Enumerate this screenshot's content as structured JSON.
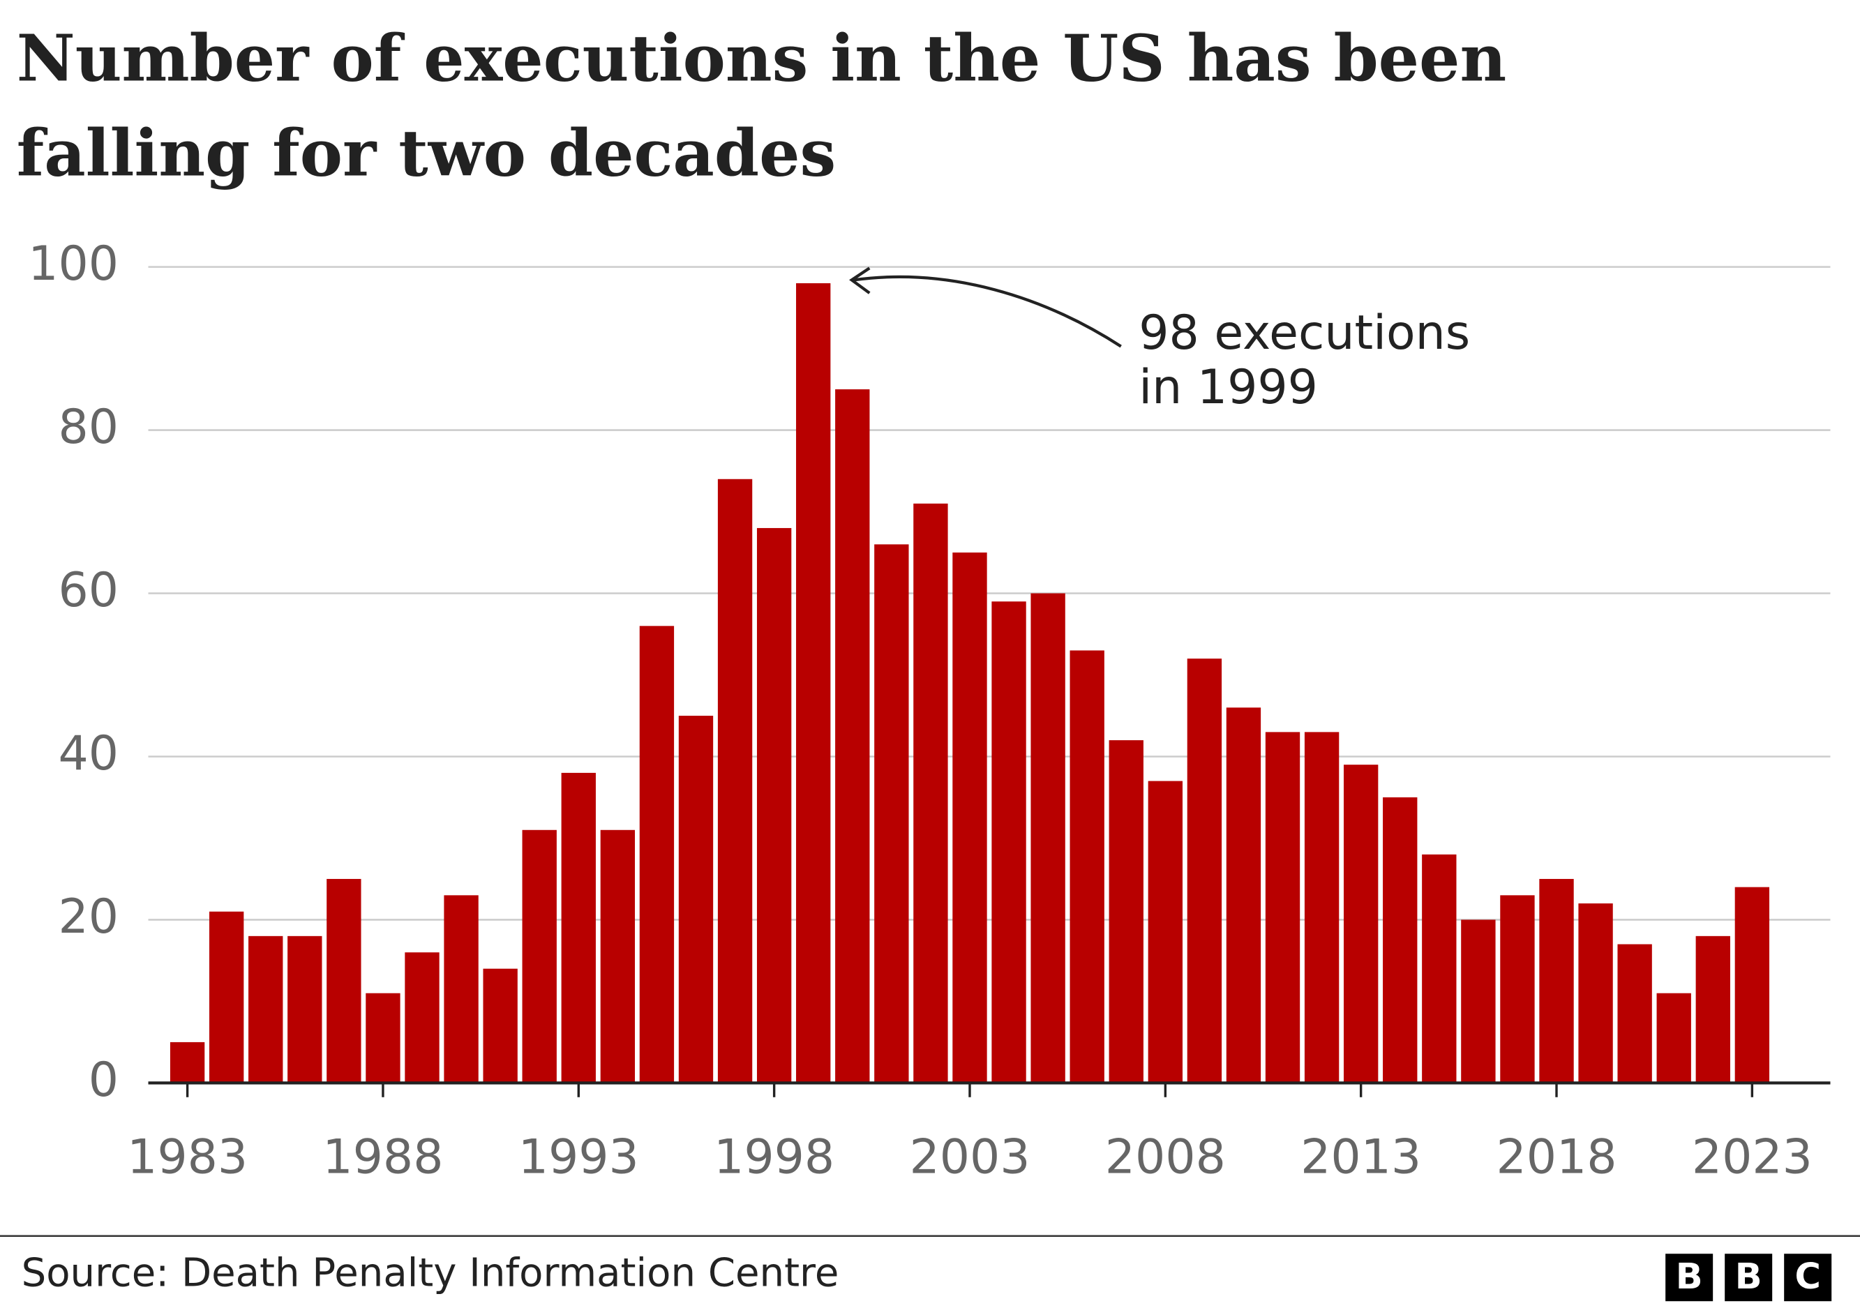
{
  "chart_data": {
    "type": "bar",
    "title": [
      "Number of executions in the US has been",
      "falling for two decades"
    ],
    "x": [
      1983,
      1984,
      1985,
      1986,
      1987,
      1988,
      1989,
      1990,
      1991,
      1992,
      1993,
      1994,
      1995,
      1996,
      1997,
      1998,
      1999,
      2000,
      2001,
      2002,
      2003,
      2004,
      2005,
      2006,
      2007,
      2008,
      2009,
      2010,
      2011,
      2012,
      2013,
      2014,
      2015,
      2016,
      2017,
      2018,
      2019,
      2020,
      2021,
      2022,
      2023
    ],
    "values": [
      5,
      21,
      18,
      18,
      25,
      11,
      16,
      23,
      14,
      31,
      38,
      31,
      56,
      45,
      74,
      68,
      98,
      85,
      66,
      71,
      65,
      59,
      60,
      53,
      42,
      37,
      52,
      46,
      43,
      43,
      39,
      35,
      28,
      20,
      23,
      25,
      22,
      17,
      11,
      18,
      24
    ],
    "color": "#b80000",
    "xlim": [
      1982,
      2025
    ],
    "xticks": [
      1983,
      1988,
      1993,
      1998,
      2003,
      2008,
      2013,
      2018,
      2023
    ],
    "ylim": [
      0,
      100
    ],
    "yticks": [
      0,
      20,
      40,
      60,
      80,
      100
    ],
    "grid": true,
    "annotation": [
      "98 executions",
      "in 1999"
    ],
    "source": "Source: Death Penalty Information Centre",
    "logo": [
      "B",
      "B",
      "C"
    ]
  }
}
